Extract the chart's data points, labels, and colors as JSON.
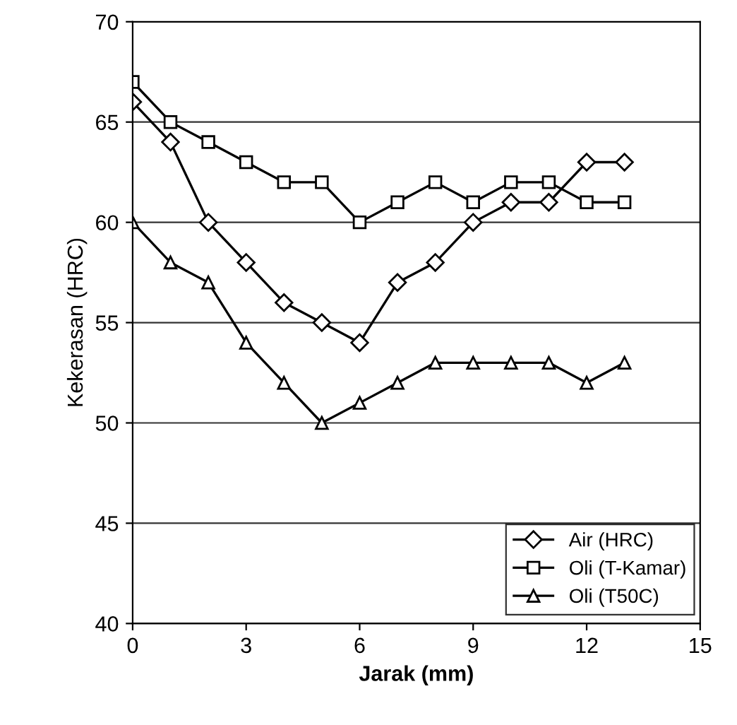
{
  "chart_data": {
    "type": "line",
    "xlabel": "Jarak (mm)",
    "ylabel": "Kekerasan (HRC)",
    "x": [
      0,
      1,
      2,
      3,
      4,
      5,
      6,
      7,
      8,
      9,
      10,
      11,
      12,
      13
    ],
    "series": [
      {
        "name": "Air (HRC)",
        "color": "#000000",
        "marker": "diamond",
        "values": [
          66,
          64,
          60,
          58,
          56,
          55,
          54,
          57,
          58,
          60,
          61,
          61,
          63,
          63
        ]
      },
      {
        "name": "Oli (T-Kamar)",
        "color": "#000000",
        "marker": "square",
        "values": [
          67,
          65,
          64,
          63,
          62,
          62,
          60,
          61,
          62,
          61,
          62,
          62,
          61,
          61
        ]
      },
      {
        "name": "Oli (T50C)",
        "color": "#000000",
        "marker": "triangle",
        "values": [
          60,
          58,
          57,
          54,
          52,
          50,
          51,
          52,
          53,
          53,
          53,
          53,
          52,
          53
        ]
      }
    ],
    "xlim": [
      0,
      15
    ],
    "xticks": [
      0,
      3,
      6,
      9,
      12,
      15
    ],
    "ylim": [
      40,
      70
    ],
    "yticks": [
      40,
      45,
      50,
      55,
      60,
      65,
      70
    ],
    "grid": "y",
    "legend": "bottom right",
    "line_style": "solid"
  }
}
